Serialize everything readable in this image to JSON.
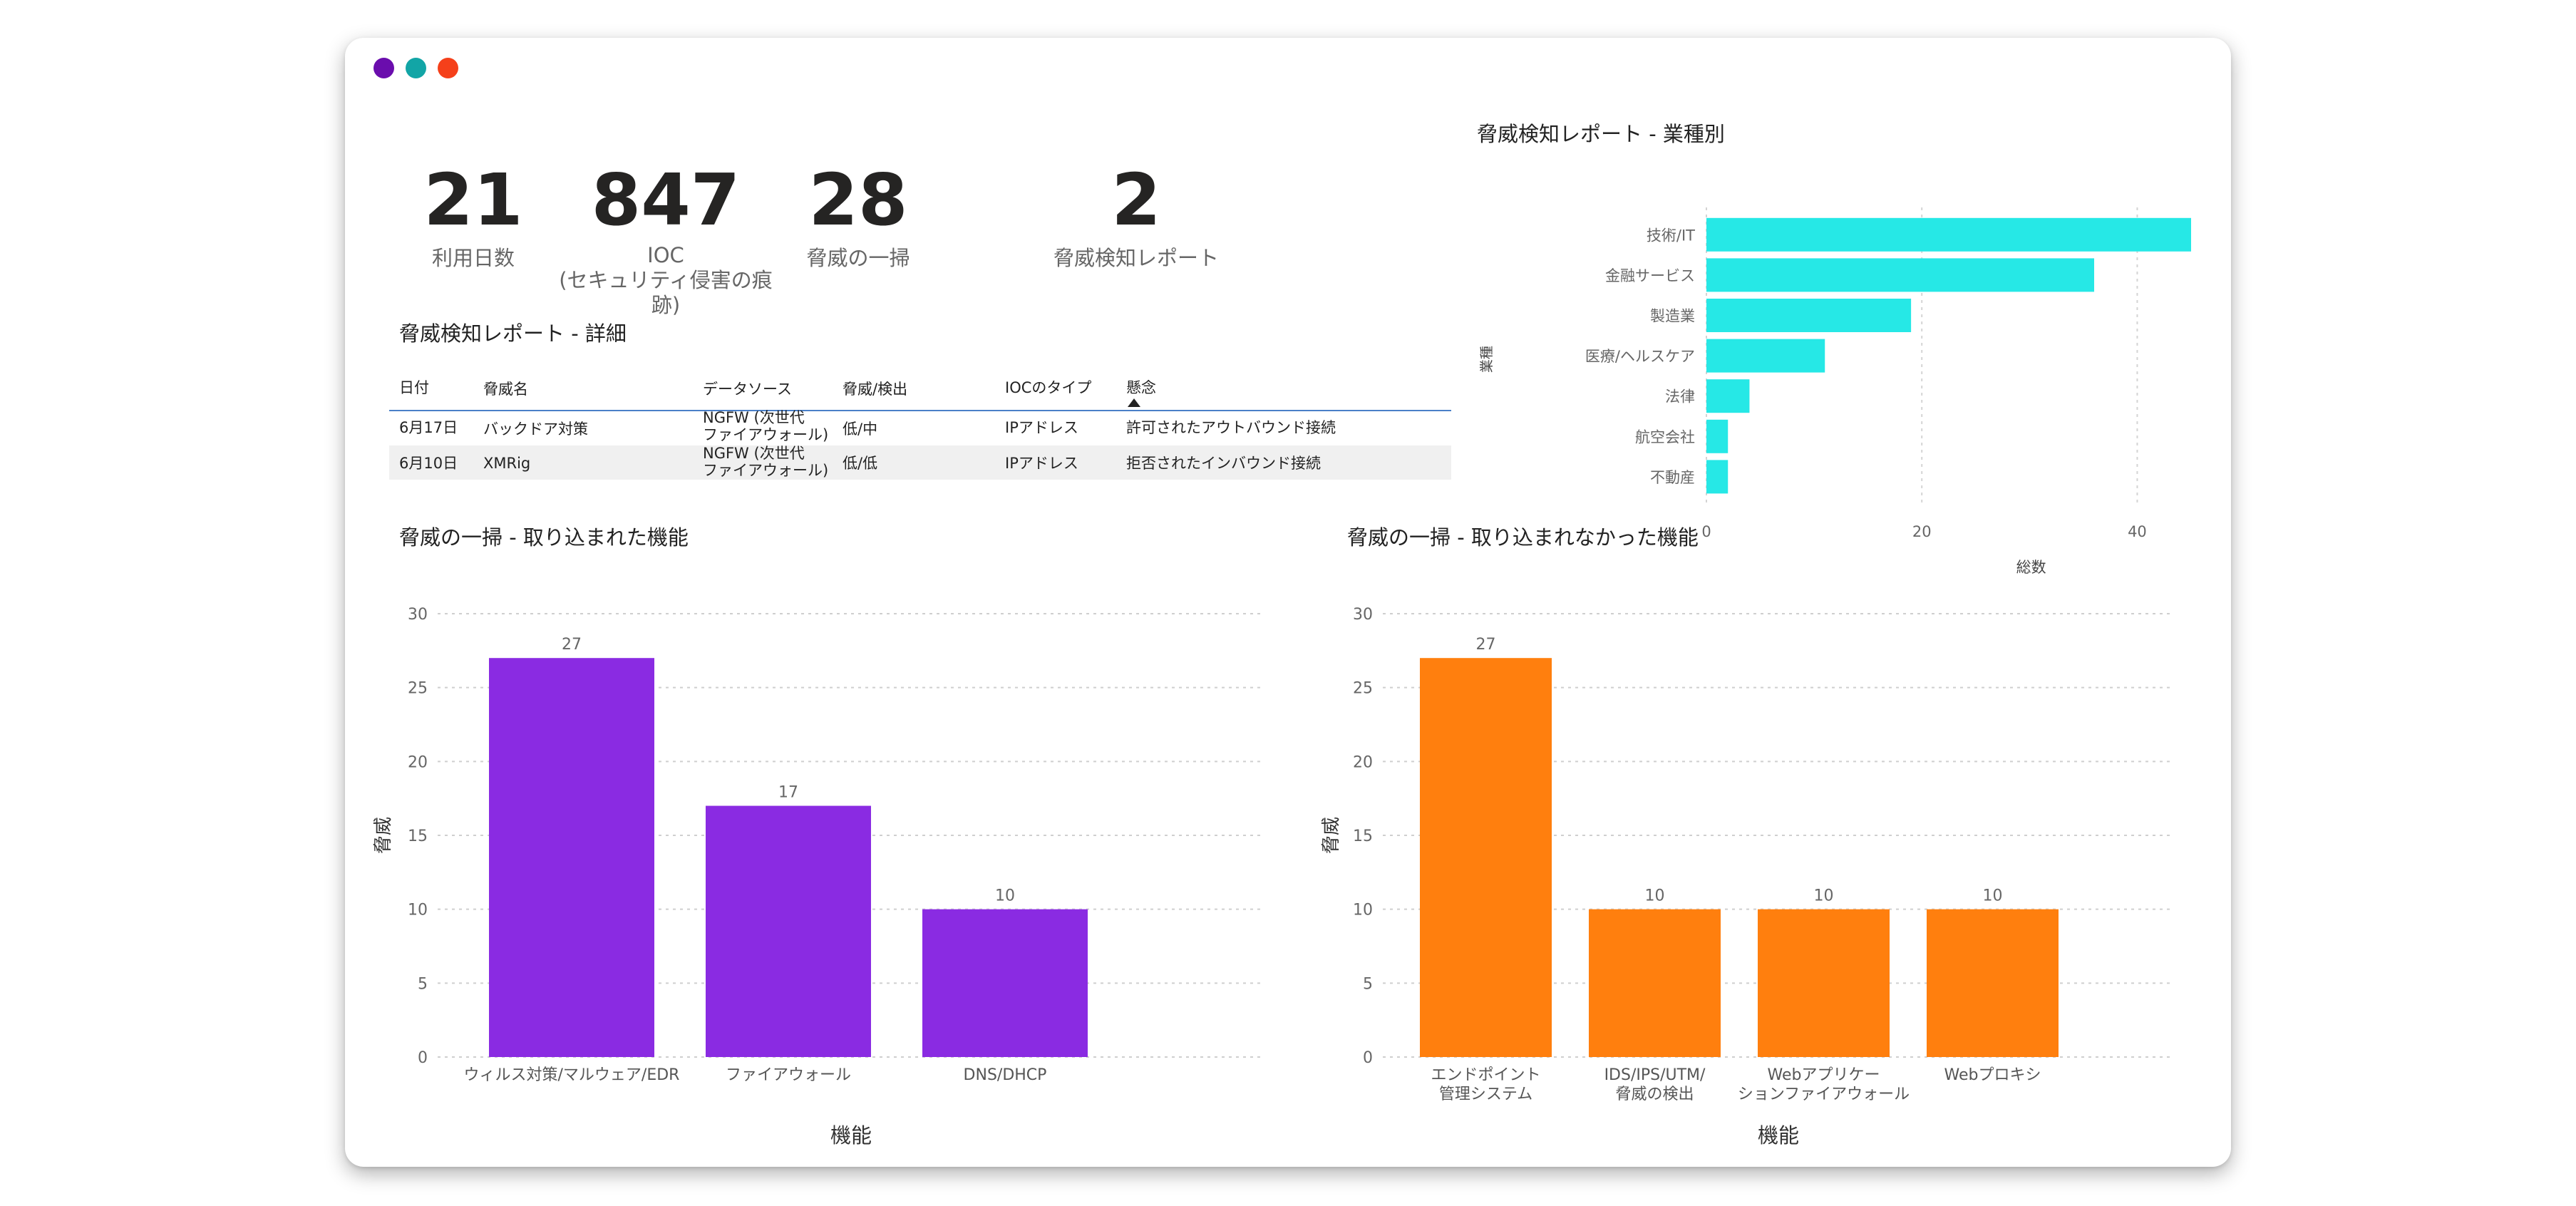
{
  "colors": {
    "dot1": "#6a0dad",
    "dot2": "#12a5a6",
    "dot3": "#f5401a",
    "purple": "#8a2be2",
    "orange": "#ff7f0e",
    "cyan": "#26e8e6"
  },
  "kpis": [
    {
      "value": "21",
      "label": "利用日数"
    },
    {
      "value": "847",
      "label": "IOC\n(セキュリティ侵害の痕跡)"
    },
    {
      "value": "28",
      "label": "脅威の一掃"
    },
    {
      "value": "2",
      "label": "脅威検知レポート"
    }
  ],
  "table": {
    "title": "脅威検知レポート - 詳細",
    "columns": [
      "日付",
      "脅威名",
      "データソース",
      "脅威/検出",
      "IOCのタイプ",
      "懸念"
    ],
    "rows": [
      [
        "6月17日",
        "バックドア対策",
        "NGFW (次世代\nファイアウォール)",
        "低/中",
        "IPアドレス",
        "許可されたアウトバウンド接続"
      ],
      [
        "6月10日",
        "XMRig",
        "NGFW (次世代\nファイアウォール)",
        "低/低",
        "IPアドレス",
        "拒否されたインバウンド接続"
      ]
    ]
  },
  "chart_data": [
    {
      "type": "bar",
      "orientation": "horizontal",
      "title": "脅威検知レポート - 業種別",
      "categories": [
        "技術/IT",
        "金融サービス",
        "製造業",
        "医療/ヘルスケア",
        "法律",
        "航空会社",
        "不動産"
      ],
      "values": [
        45,
        36,
        19,
        11,
        4,
        2,
        2
      ],
      "xlabel": "総数",
      "ylabel": "業種",
      "xlim": [
        0,
        45
      ],
      "xticks": [
        0,
        20,
        40
      ],
      "grid": true
    },
    {
      "type": "bar",
      "title": "脅威の一掃 - 取り込まれた機能",
      "categories": [
        "ウィルス対策/マルウェア/EDR",
        "ファイアウォール",
        "DNS/DHCP"
      ],
      "values": [
        27,
        17,
        10
      ],
      "xlabel": "機能",
      "ylabel": "脅威",
      "ylim": [
        0,
        30
      ],
      "yticks": [
        0,
        5,
        10,
        15,
        20,
        25,
        30
      ],
      "grid": true
    },
    {
      "type": "bar",
      "title": "脅威の一掃 - 取り込まれなかった機能",
      "categories": [
        "エンドポイント\n管理システム",
        "IDS/IPS/UTM/\n脅威の検出",
        "Webアプリケー\nションファイアウォール",
        "Webプロキシ"
      ],
      "values": [
        27,
        10,
        10,
        10
      ],
      "xlabel": "機能",
      "ylabel": "脅威",
      "ylim": [
        0,
        30
      ],
      "yticks": [
        0,
        5,
        10,
        15,
        20,
        25,
        30
      ],
      "grid": true
    }
  ]
}
